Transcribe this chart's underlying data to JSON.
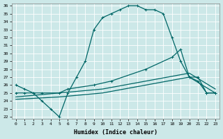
{
  "xlabel": "Humidex (Indice chaleur)",
  "xlim": [
    0,
    23
  ],
  "ylim": [
    22,
    36
  ],
  "ytick_vals": [
    22,
    23,
    24,
    25,
    26,
    27,
    28,
    29,
    30,
    31,
    32,
    33,
    34,
    35,
    36
  ],
  "xtick_vals": [
    0,
    1,
    2,
    3,
    4,
    5,
    6,
    7,
    8,
    9,
    10,
    11,
    12,
    13,
    14,
    15,
    16,
    17,
    18,
    19,
    20,
    21,
    22,
    23
  ],
  "bg_color": "#cce8e8",
  "grid_color": "#b8d8d8",
  "line_color": "#006666",
  "curve1_x": [
    0,
    1,
    2,
    3,
    4,
    5,
    6,
    7,
    8,
    9,
    10,
    11,
    12,
    13,
    14,
    15,
    16,
    17,
    18,
    19,
    20,
    21,
    22,
    23
  ],
  "curve1_y": [
    26,
    25.5,
    25,
    24,
    23,
    22,
    25,
    27,
    29,
    33,
    34.5,
    35,
    35.5,
    36,
    36,
    35.5,
    35.5,
    35,
    32,
    29,
    27,
    26.5,
    25,
    25
  ],
  "curve2_x": [
    0,
    1,
    2,
    3,
    5,
    6,
    9,
    11,
    15,
    18,
    19,
    20,
    21,
    22,
    23
  ],
  "curve2_y": [
    25,
    25,
    25,
    25,
    25,
    25.5,
    26,
    26.5,
    28,
    29.5,
    30.5,
    27,
    27,
    25,
    25
  ],
  "curve3_x": [
    0,
    5,
    10,
    15,
    20,
    23
  ],
  "curve3_y": [
    24.5,
    25,
    25.5,
    26.5,
    27.5,
    25.5
  ],
  "curve4_x": [
    0,
    5,
    10,
    15,
    20,
    23
  ],
  "curve4_y": [
    24.2,
    24.5,
    25.0,
    26.0,
    27.0,
    25.0
  ]
}
